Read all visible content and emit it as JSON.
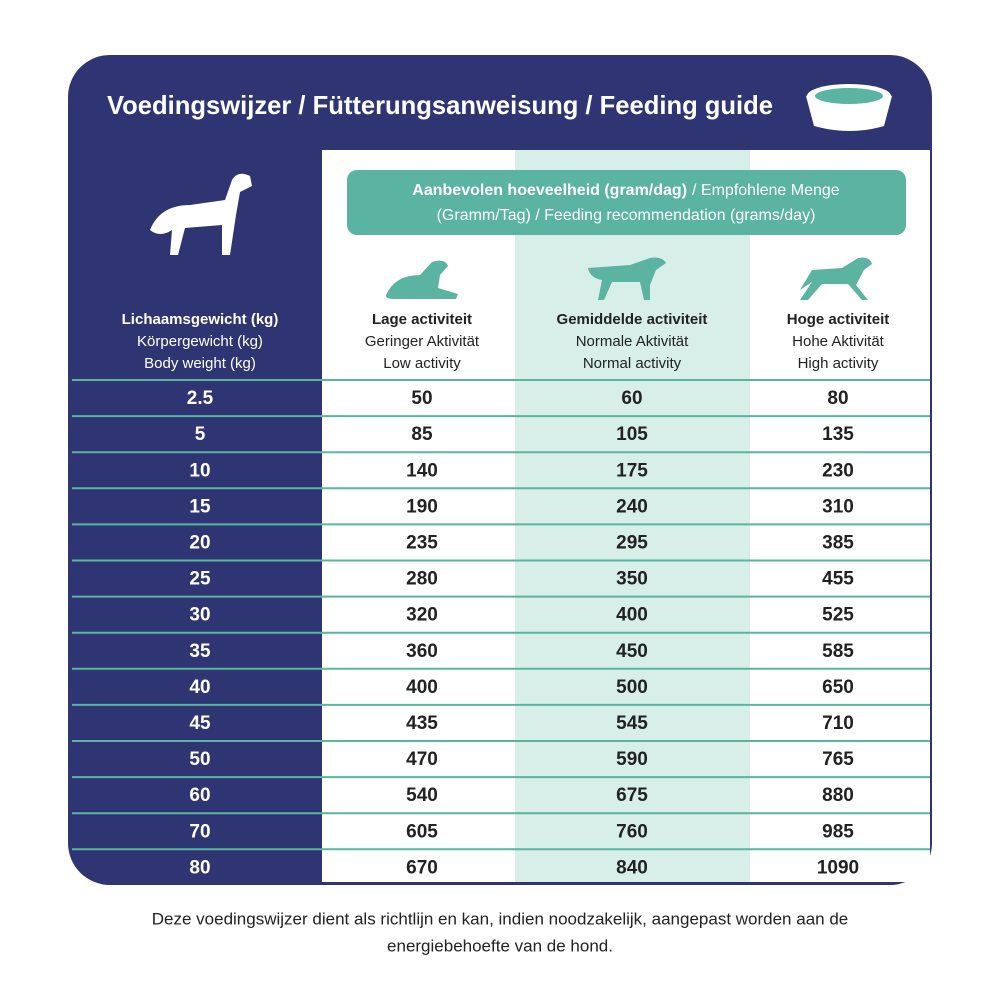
{
  "header": {
    "title": "Voedingswijzer / Fütterungsanweisung / Feeding guide"
  },
  "banner": {
    "bold": "Aanbevolen hoeveelheid (gram/dag)",
    "rest": "/ Empfohlene Menge",
    "line2": "(Gramm/Tag) / Feeding recommendation (grams/day)"
  },
  "columns": [
    [
      "Lichaamsgewicht (kg)",
      "Körpergewicht (kg)",
      "Body weight (kg)"
    ],
    [
      "Lage activiteit",
      "Geringer Aktivität",
      "Low activity"
    ],
    [
      "Gemiddelde activiteit",
      "Normale Aktivität",
      "Normal activity"
    ],
    [
      "Hoge activiteit",
      "Hohe Aktivität",
      "High activity"
    ]
  ],
  "table": {
    "rows": [
      [
        2.5,
        50,
        60,
        80
      ],
      [
        5,
        85,
        105,
        135
      ],
      [
        10,
        140,
        175,
        230
      ],
      [
        15,
        190,
        240,
        310
      ],
      [
        20,
        235,
        295,
        385
      ],
      [
        25,
        280,
        350,
        455
      ],
      [
        30,
        320,
        400,
        525
      ],
      [
        35,
        360,
        450,
        585
      ],
      [
        40,
        400,
        500,
        650
      ],
      [
        45,
        435,
        545,
        710
      ],
      [
        50,
        470,
        590,
        765
      ],
      [
        60,
        540,
        675,
        880
      ],
      [
        70,
        605,
        760,
        985
      ],
      [
        80,
        670,
        840,
        1090
      ]
    ]
  },
  "footer": {
    "lines": [
      "Deze voedingswijzer dient als richtlijn en kan, indien noodzakelijk, aangepast worden aan de",
      "energiebehoefte van de hond."
    ]
  }
}
